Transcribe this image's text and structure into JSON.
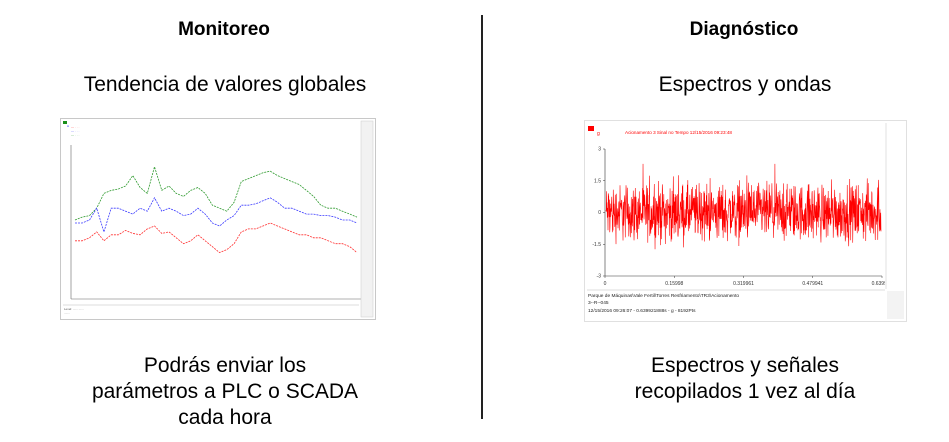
{
  "left": {
    "heading": "Monitoreo",
    "subtitle": "Tendencia de valores globales",
    "description": [
      "Podrás enviar los",
      "parámetros a PLC o SCADA",
      "cada hora"
    ],
    "trend_chart": {
      "legend_colors": [
        "#2e9a2e",
        "#3b3bff",
        "#ff3030"
      ],
      "series": [
        {
          "color": "#2e9a2e",
          "values": [
            0.52,
            0.54,
            0.55,
            0.6,
            0.7,
            0.72,
            0.73,
            0.75,
            0.82,
            0.74,
            0.7,
            0.88,
            0.72,
            0.75,
            0.7,
            0.68,
            0.72,
            0.74,
            0.7,
            0.62,
            0.6,
            0.58,
            0.64,
            0.78,
            0.8,
            0.82,
            0.84,
            0.85,
            0.82,
            0.8,
            0.78,
            0.76,
            0.72,
            0.68,
            0.62,
            0.6,
            0.6,
            0.58,
            0.56,
            0.54
          ]
        },
        {
          "color": "#3b3bff",
          "values": [
            0.5,
            0.5,
            0.52,
            0.6,
            0.44,
            0.6,
            0.6,
            0.58,
            0.56,
            0.6,
            0.58,
            0.67,
            0.58,
            0.6,
            0.58,
            0.55,
            0.56,
            0.6,
            0.56,
            0.5,
            0.48,
            0.52,
            0.55,
            0.62,
            0.62,
            0.63,
            0.65,
            0.67,
            0.64,
            0.6,
            0.6,
            0.58,
            0.56,
            0.56,
            0.55,
            0.55,
            0.54,
            0.52,
            0.52,
            0.5
          ]
        },
        {
          "color": "#ff3030",
          "values": [
            0.38,
            0.38,
            0.4,
            0.44,
            0.38,
            0.42,
            0.42,
            0.45,
            0.43,
            0.42,
            0.46,
            0.48,
            0.43,
            0.44,
            0.4,
            0.36,
            0.38,
            0.42,
            0.38,
            0.34,
            0.3,
            0.32,
            0.36,
            0.44,
            0.46,
            0.46,
            0.48,
            0.5,
            0.48,
            0.46,
            0.44,
            0.42,
            0.42,
            0.4,
            0.4,
            0.38,
            0.36,
            0.36,
            0.34,
            0.3
          ]
        }
      ]
    }
  },
  "right": {
    "heading": "Diagnóstico",
    "subtitle": "Espectros y ondas",
    "description": [
      "Espectros y señales",
      "recopilados 1 vez al día"
    ],
    "wave_chart": {
      "legend_unit": "g",
      "legend_title": "Acionamento 3 Sinal no Tempo 12/15/2016 09:23:48",
      "legend_color": "#ff0000",
      "y_ticks": [
        "3",
        "1.5",
        "0",
        "-1.5",
        "-3"
      ],
      "x_ticks": [
        "0",
        "0.15998",
        "0.319961",
        "0.479941",
        "0.639922"
      ],
      "x_unit": "s",
      "footer_line1": "Parque de Máquinas\\Vale Fertil\\Torres Resfriamento\\TR3\\Acionamento",
      "footer_line2": "3--R--045",
      "footer_line3": "12/15/2016 09:26:07 - 0.639921888s - g - 8192Pts",
      "chart_data": {
        "type": "line",
        "title": "Acionamento 3 Sinal no Tempo 12/15/2016 09:23:48",
        "xlabel": "s",
        "ylabel": "g",
        "xlim": [
          0,
          0.639922
        ],
        "ylim": [
          -3,
          3
        ],
        "series": [
          {
            "name": "g",
            "description_only": false,
            "values_summary": [
              -1.5,
              1.5
            ]
          }
        ]
      }
    }
  }
}
